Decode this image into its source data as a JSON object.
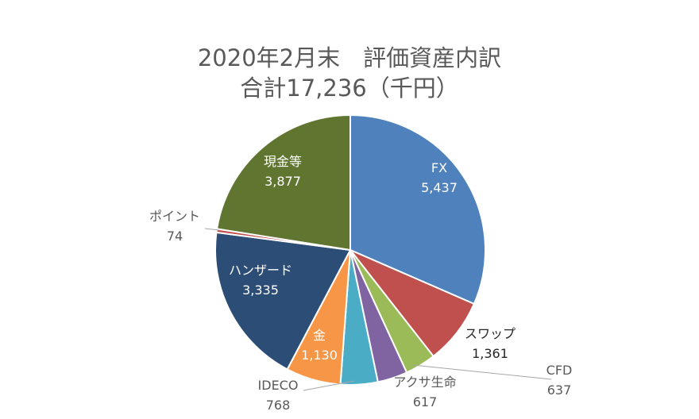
{
  "chart_data": {
    "type": "pie",
    "title": "2020年2月末　評価資産内訳",
    "subtitle": "合計17,236（千円）",
    "unit": "千円",
    "total": 17236,
    "start_angle": "12 o'clock",
    "direction": "clockwise",
    "legend": "none",
    "slices": [
      {
        "label": "FX",
        "value": 5437,
        "value_label": "5,437",
        "color": "#4f81bd",
        "label_position": "inside"
      },
      {
        "label": "スワップ",
        "value": 1361,
        "value_label": "1,361",
        "color": "#c0504d",
        "label_position": "outside"
      },
      {
        "label": "CFD",
        "value": 637,
        "value_label": "637",
        "color": "#9bbb59",
        "label_position": "outside"
      },
      {
        "label": "アクサ生命",
        "value": 617,
        "value_label": "617",
        "color": "#8064a2",
        "label_position": "outside"
      },
      {
        "label": "IDECO",
        "value": 768,
        "value_label": "768",
        "color": "#4bacc6",
        "label_position": "outside"
      },
      {
        "label": "金",
        "value": 1130,
        "value_label": "1,130",
        "color": "#f79646",
        "label_position": "inside"
      },
      {
        "label": "ハンザード",
        "value": 3335,
        "value_label": "3,335",
        "color": "#2c4d75",
        "label_position": "inside"
      },
      {
        "label": "ポイント",
        "value": 74,
        "value_label": "74",
        "color": "#c0504d",
        "label_position": "outside"
      },
      {
        "label": "現金等",
        "value": 3877,
        "value_label": "3,877",
        "color": "#5f7530",
        "label_position": "inside"
      }
    ]
  }
}
